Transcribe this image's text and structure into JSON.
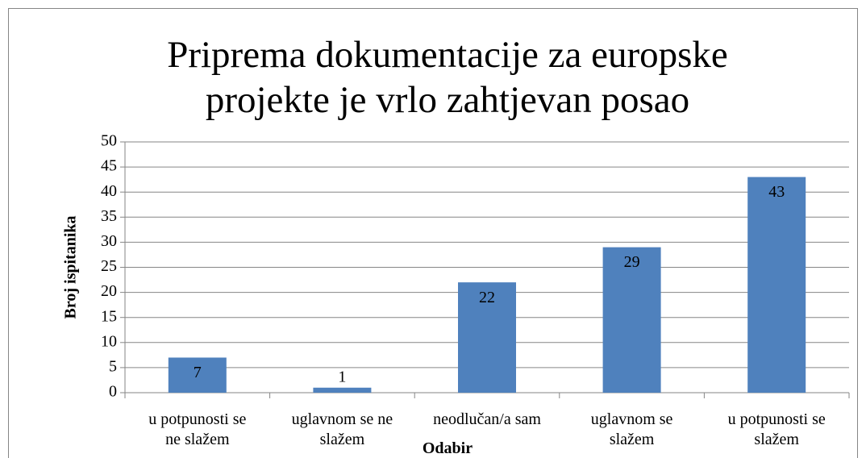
{
  "chart_data": {
    "type": "bar",
    "title": "Priprema dokumentacije za europske\nprojekte je vrlo zahtjevan posao",
    "x_label": "Odabir",
    "y_label": "Broj ispitanika",
    "categories": [
      "u potpunosti se\nne slažem",
      "uglavnom se ne\nslažem",
      "neodlučan/a sam",
      "uglavnom se\nslažem",
      "u potpunosti se\nslažem"
    ],
    "values": [
      7,
      1,
      22,
      29,
      43
    ],
    "color": "#4f81bd",
    "ylim": [
      0,
      50
    ],
    "yticks": [
      0,
      5,
      10,
      15,
      20,
      25,
      30,
      35,
      40,
      45,
      50
    ],
    "grid": true
  }
}
